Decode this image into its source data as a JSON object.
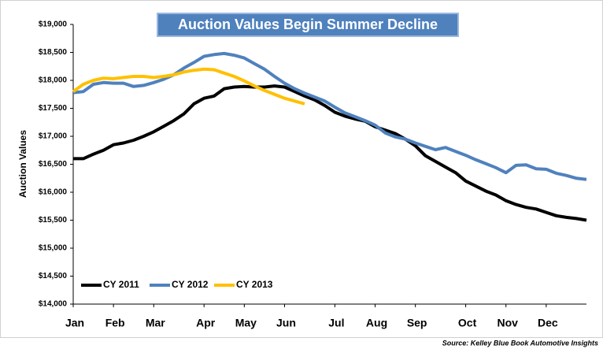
{
  "chart_data": {
    "type": "line",
    "title": "Auction Values Begin Summer Decline",
    "y_label": "Auction Values",
    "source": "Source: Kelley Blue Book Automotive Insights",
    "categories": [
      "Jan",
      null,
      null,
      null,
      "Feb",
      null,
      null,
      null,
      "Mar",
      null,
      null,
      null,
      null,
      "Apr",
      null,
      null,
      null,
      "May",
      null,
      null,
      null,
      "Jun",
      null,
      null,
      null,
      null,
      "Jul",
      null,
      null,
      null,
      "Aug",
      null,
      null,
      null,
      "Sep",
      null,
      null,
      null,
      null,
      "Oct",
      null,
      null,
      null,
      "Nov",
      null,
      null,
      null,
      "Dec",
      null,
      null,
      null,
      null
    ],
    "series": [
      {
        "name": "CY 2011",
        "color": "#000000",
        "values": [
          16600,
          16600,
          16680,
          16750,
          16850,
          16880,
          16930,
          17000,
          17080,
          17180,
          17280,
          17400,
          17580,
          17680,
          17720,
          17850,
          17880,
          17890,
          17880,
          17880,
          17900,
          17880,
          17800,
          17720,
          17650,
          17550,
          17430,
          17360,
          17310,
          17270,
          17170,
          17110,
          17050,
          16950,
          16830,
          16650,
          16550,
          16450,
          16350,
          16200,
          16110,
          16020,
          15950,
          15850,
          15780,
          15730,
          15700,
          15640,
          15580,
          15550,
          15530,
          15500
        ]
      },
      {
        "name": "CY 2012",
        "color": "#4f81bd",
        "values": [
          17780,
          17800,
          17930,
          17960,
          17950,
          17950,
          17890,
          17910,
          17960,
          18020,
          18100,
          18220,
          18320,
          18430,
          18460,
          18480,
          18450,
          18400,
          18300,
          18200,
          18070,
          17950,
          17850,
          17770,
          17700,
          17630,
          17520,
          17420,
          17350,
          17280,
          17200,
          17060,
          16990,
          16950,
          16880,
          16820,
          16760,
          16800,
          16730,
          16660,
          16580,
          16510,
          16440,
          16350,
          16480,
          16490,
          16420,
          16410,
          16340,
          16300,
          16250,
          16230
        ]
      },
      {
        "name": "CY 2013",
        "color": "#ffc000",
        "values": [
          17800,
          17930,
          18000,
          18040,
          18030,
          18050,
          18070,
          18070,
          18050,
          18070,
          18100,
          18150,
          18180,
          18200,
          18190,
          18130,
          18070,
          17990,
          17900,
          17820,
          17750,
          17680,
          17630,
          17580,
          null,
          null,
          null,
          null,
          null,
          null,
          null,
          null,
          null,
          null,
          null,
          null,
          null,
          null,
          null,
          null,
          null,
          null,
          null,
          null,
          null,
          null,
          null,
          null,
          null,
          null,
          null,
          null
        ]
      }
    ],
    "ylim": [
      14000,
      19000
    ],
    "yticks": [
      {
        "value": 14000,
        "label": "$14,000"
      },
      {
        "value": 14500,
        "label": "$14,500"
      },
      {
        "value": 15000,
        "label": "$15,000"
      },
      {
        "value": 15500,
        "label": "$15,500"
      },
      {
        "value": 16000,
        "label": "$16,000"
      },
      {
        "value": 16500,
        "label": "$16,500"
      },
      {
        "value": 17000,
        "label": "$17,000"
      },
      {
        "value": 17500,
        "label": "$17,500"
      },
      {
        "value": 18000,
        "label": "$18,000"
      },
      {
        "value": 18500,
        "label": "$18,500"
      },
      {
        "value": 19000,
        "label": "$19,000"
      }
    ],
    "legend": "lower left"
  }
}
